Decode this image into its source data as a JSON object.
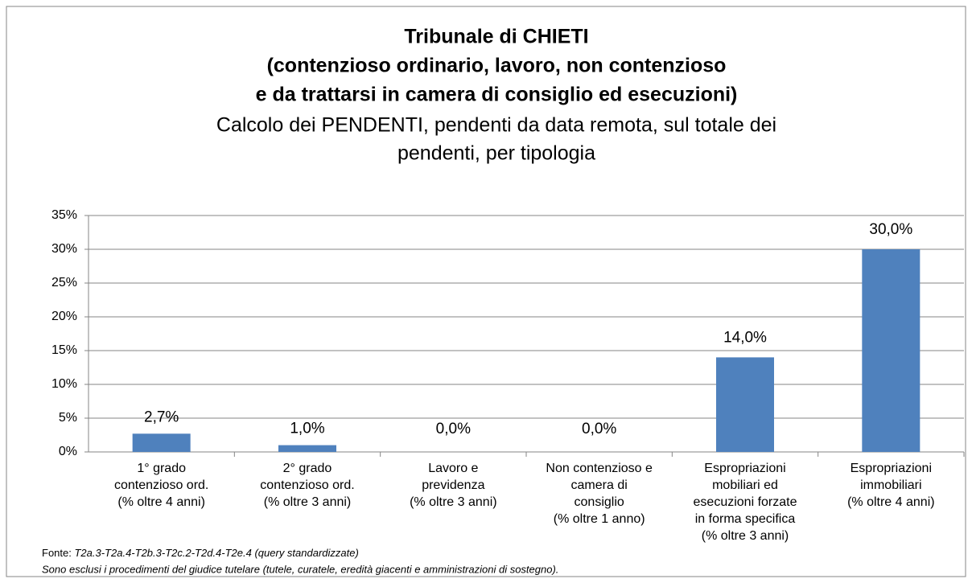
{
  "chart_data": {
    "type": "bar",
    "title": [
      "Tribunale di CHIETI",
      "(contenzioso ordinario, lavoro, non contenzioso",
      "e da trattarsi in camera di consiglio ed esecuzioni)"
    ],
    "subtitle": [
      "Calcolo dei PENDENTI, pendenti da data remota, sul totale dei",
      "pendenti, per tipologia"
    ],
    "categories": [
      [
        "1° grado",
        "contenzioso ord.",
        "(% oltre 4 anni)"
      ],
      [
        "2° grado",
        "contenzioso ord.",
        "(% oltre 3 anni)"
      ],
      [
        "Lavoro e",
        "previdenza",
        "(% oltre 3 anni)"
      ],
      [
        "Non contenzioso e",
        "camera di",
        "consiglio",
        "(% oltre 1 anno)"
      ],
      [
        "Espropriazioni",
        "mobiliari ed",
        "esecuzioni forzate",
        "in forma specifica",
        "(% oltre 3 anni)"
      ],
      [
        "Espropriazioni",
        "immobiliari",
        "(% oltre 4 anni)"
      ]
    ],
    "values": [
      2.7,
      1.0,
      0.0,
      0.0,
      14.0,
      30.0
    ],
    "value_labels": [
      "2,7%",
      "1,0%",
      "0,0%",
      "0,0%",
      "14,0%",
      "30,0%"
    ],
    "color": "#4f81bd",
    "ylim": [
      0,
      35
    ],
    "yticks": [
      {
        "value": 0,
        "label": "0%"
      },
      {
        "value": 5,
        "label": "5%"
      },
      {
        "value": 10,
        "label": "10%"
      },
      {
        "value": 15,
        "label": "15%"
      },
      {
        "value": 20,
        "label": "20%"
      },
      {
        "value": 25,
        "label": "25%"
      },
      {
        "value": 30,
        "label": "30%"
      },
      {
        "value": 35,
        "label": "35%"
      }
    ],
    "grid": true,
    "source_label": "Fonte:",
    "source": "T2a.3-T2a.4-T2b.3-T2c.2-T2d.4-T2e.4 (query standardizzate)",
    "note": "Sono esclusi i procedimenti del giudice tutelare (tutele, curatele, eredità giacenti e amministrazioni di sostegno)."
  }
}
